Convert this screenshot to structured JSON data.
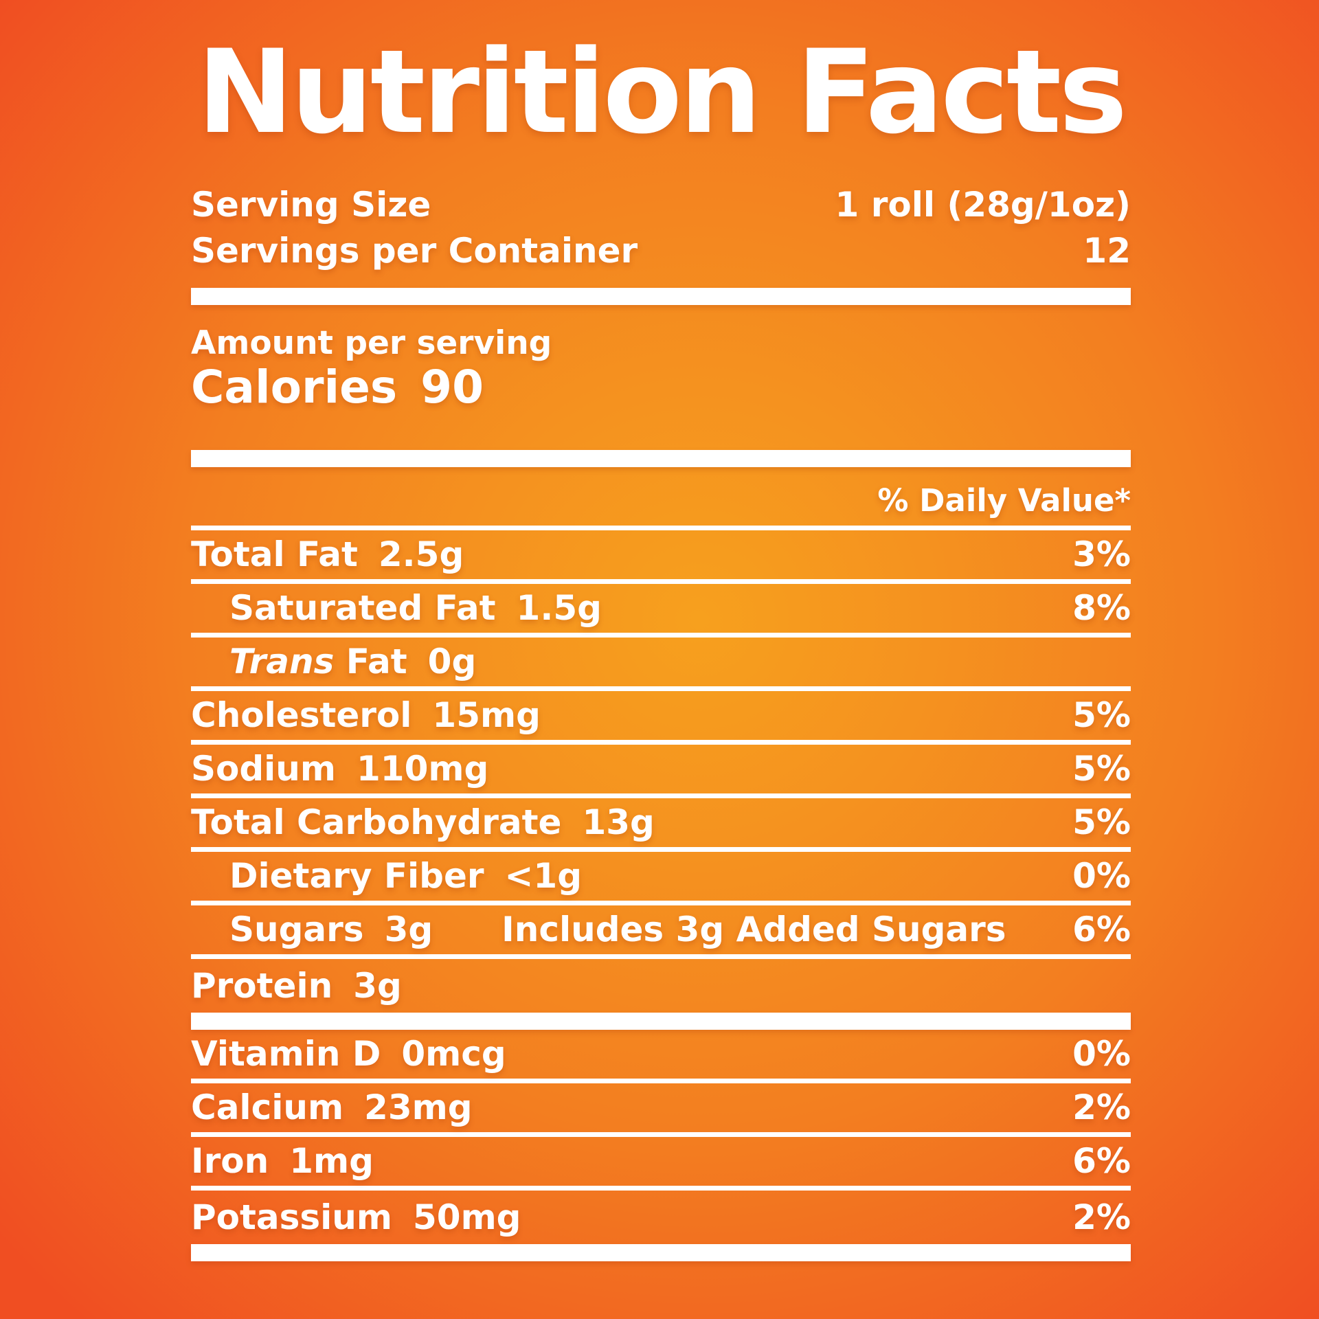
{
  "page": {
    "title": "Nutrition Facts"
  },
  "colors": {
    "background_center": "#F7A01E",
    "background_mid": "#F37E20",
    "background_edge": "#F04E22",
    "text": "#FFFFFF",
    "rule": "#FFFFFF"
  },
  "serving": {
    "size_label": "Serving Size",
    "size_value": "1 roll (28g/1oz)",
    "per_container_label": "Servings per Container",
    "per_container_value": "12"
  },
  "amount_per_serving_label": "Amount per serving",
  "calories": {
    "label": "Calories",
    "value": "90"
  },
  "daily_value_header": "% Daily Value*",
  "nutrients": [
    {
      "name": "Total Fat",
      "amount": "2.5g",
      "dv": "3%",
      "indent": false
    },
    {
      "name": "Saturated Fat",
      "amount": "1.5g",
      "dv": "8%",
      "indent": true
    },
    {
      "name_italic": "Trans",
      "name": "Fat",
      "amount": "0g",
      "dv": "",
      "indent": true
    },
    {
      "name": "Cholesterol",
      "amount": "15mg",
      "dv": "5%",
      "indent": false
    },
    {
      "name": "Sodium",
      "amount": "110mg",
      "dv": "5%",
      "indent": false
    },
    {
      "name": "Total Carbohydrate",
      "amount": "13g",
      "dv": "5%",
      "indent": false
    },
    {
      "name": "Dietary Fiber",
      "amount": "<1g",
      "dv": "0%",
      "indent": true
    },
    {
      "name": "Sugars",
      "amount": "3g",
      "extra": "Includes 3g Added Sugars",
      "dv": "6%",
      "indent": true
    },
    {
      "name": "Protein",
      "amount": "3g",
      "dv": "",
      "indent": false,
      "last": true
    }
  ],
  "vitamins": [
    {
      "name": "Vitamin D",
      "amount": "0mcg",
      "dv": "0%"
    },
    {
      "name": "Calcium",
      "amount": "23mg",
      "dv": "2%"
    },
    {
      "name": "Iron",
      "amount": "1mg",
      "dv": "6%"
    },
    {
      "name": "Potassium",
      "amount": "50mg",
      "dv": "2%",
      "last": true
    }
  ]
}
